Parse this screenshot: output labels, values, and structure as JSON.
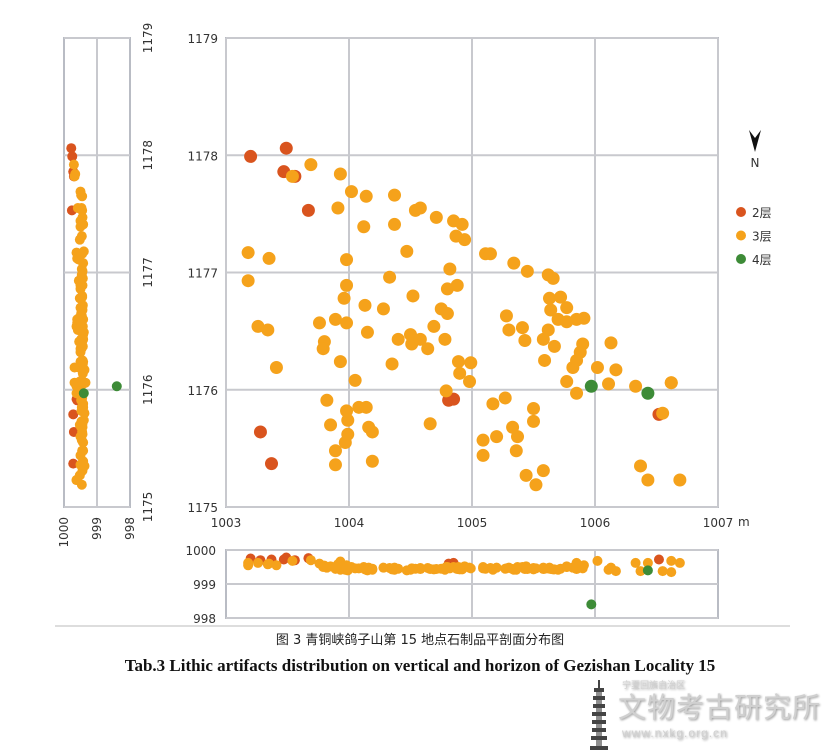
{
  "chart_data": {
    "type": "scatter",
    "title_cn": "图 3 青铜峡鸽子山第 15 地点石制品平剖面分布图",
    "title_en": "Tab.3  Lithic artifacts distribution on vertical and horizon of Gezishan Locality 15",
    "unit_label": "m",
    "north_label": "N",
    "plan": {
      "xlim": [
        1003,
        1007
      ],
      "ylim": [
        1175,
        1179
      ],
      "xticks": [
        "1003",
        "1004",
        "1005",
        "1006",
        "1007"
      ],
      "yticks": [
        "1175",
        "1176",
        "1177",
        "1178",
        "1179"
      ],
      "grid": true
    },
    "side_profile": {
      "zlim": [
        998,
        1000
      ],
      "zticks": [
        "1000",
        "999",
        "998"
      ],
      "ylim": [
        1175,
        1179
      ],
      "yticks": [
        "1175",
        "1176",
        "1177",
        "1178",
        "1179"
      ]
    },
    "front_profile": {
      "xlim": [
        1003,
        1007
      ],
      "zlim": [
        998,
        1000
      ],
      "zticks": [
        "1000",
        "999",
        "998"
      ]
    },
    "legend_position": "right",
    "series": [
      {
        "name": "2层",
        "color": "#d9541e",
        "points": [
          [
            1003.2,
            1177.99,
            999.75
          ],
          [
            1003.49,
            1178.06,
            999.78
          ],
          [
            1003.47,
            1177.86,
            999.72
          ],
          [
            1003.56,
            1177.82,
            999.7
          ],
          [
            1003.67,
            1177.53,
            999.76
          ],
          [
            1003.28,
            1175.64,
            999.7
          ],
          [
            1003.37,
            1175.37,
            999.72
          ],
          [
            1004.81,
            1175.91,
            999.6
          ],
          [
            1004.85,
            1175.92,
            999.62
          ],
          [
            1006.52,
            1175.79,
            999.72
          ]
        ]
      },
      {
        "name": "3层",
        "color": "#f5a21b",
        "points": [
          [
            1003.18,
            1177.17,
            999.62
          ],
          [
            1003.18,
            1176.93,
            999.55
          ],
          [
            1003.35,
            1177.12,
            999.6
          ],
          [
            1003.54,
            1177.82,
            999.68
          ],
          [
            1003.69,
            1177.92,
            999.7
          ],
          [
            1003.93,
            1177.84,
            999.66
          ],
          [
            1004.02,
            1177.69,
            999.5
          ],
          [
            1004.14,
            1177.65,
            999.45
          ],
          [
            1004.37,
            1177.66,
            999.48
          ],
          [
            1003.91,
            1177.55,
            999.58
          ],
          [
            1004.12,
            1177.39,
            999.5
          ],
          [
            1004.37,
            1177.41,
            999.42
          ],
          [
            1004.54,
            1177.53,
            999.45
          ],
          [
            1004.58,
            1177.55,
            999.47
          ],
          [
            1004.71,
            1177.47,
            999.44
          ],
          [
            1004.85,
            1177.44,
            999.5
          ],
          [
            1004.92,
            1177.41,
            999.43
          ],
          [
            1004.87,
            1177.31,
            999.46
          ],
          [
            1004.94,
            1177.28,
            999.52
          ],
          [
            1004.47,
            1177.18,
            999.4
          ],
          [
            1004.33,
            1176.96,
            999.47
          ],
          [
            1003.98,
            1177.11,
            999.55
          ],
          [
            1003.96,
            1176.78,
            999.52
          ],
          [
            1003.98,
            1176.89,
            999.5
          ],
          [
            1003.26,
            1176.54,
            999.62
          ],
          [
            1003.34,
            1176.51,
            999.58
          ],
          [
            1003.41,
            1176.19,
            999.55
          ],
          [
            1003.76,
            1176.57,
            999.6
          ],
          [
            1003.8,
            1176.41,
            999.54
          ],
          [
            1003.79,
            1176.35,
            999.5
          ],
          [
            1003.89,
            1176.6,
            999.45
          ],
          [
            1003.93,
            1176.24,
            999.42
          ],
          [
            1004.13,
            1176.72,
            999.43
          ],
          [
            1004.15,
            1176.49,
            999.4
          ],
          [
            1004.28,
            1176.69,
            999.48
          ],
          [
            1004.4,
            1176.43,
            999.45
          ],
          [
            1004.5,
            1176.47,
            999.42
          ],
          [
            1004.51,
            1176.39,
            999.46
          ],
          [
            1004.58,
            1176.43,
            999.44
          ],
          [
            1004.64,
            1176.35,
            999.47
          ],
          [
            1004.69,
            1176.54,
            999.43
          ],
          [
            1004.75,
            1176.69,
            999.45
          ],
          [
            1004.8,
            1176.65,
            999.48
          ],
          [
            1004.8,
            1176.86,
            999.5
          ],
          [
            1004.82,
            1177.03,
            999.46
          ],
          [
            1004.78,
            1176.43,
            999.42
          ],
          [
            1004.88,
            1176.89,
            999.44
          ],
          [
            1004.89,
            1176.24,
            999.5
          ],
          [
            1004.99,
            1176.23,
            999.46
          ],
          [
            1004.9,
            1176.14,
            999.43
          ],
          [
            1004.98,
            1176.07,
            999.48
          ],
          [
            1005.11,
            1177.16,
            999.45
          ],
          [
            1005.15,
            1177.16,
            999.47
          ],
          [
            1005.34,
            1177.08,
            999.42
          ],
          [
            1005.45,
            1177.01,
            999.44
          ],
          [
            1005.62,
            1176.98,
            999.46
          ],
          [
            1005.66,
            1176.95,
            999.43
          ],
          [
            1005.63,
            1176.78,
            999.48
          ],
          [
            1005.72,
            1176.79,
            999.45
          ],
          [
            1005.77,
            1176.7,
            999.5
          ],
          [
            1005.64,
            1176.68,
            999.44
          ],
          [
            1005.7,
            1176.6,
            999.42
          ],
          [
            1005.62,
            1176.51,
            999.46
          ],
          [
            1005.58,
            1176.43,
            999.48
          ],
          [
            1005.67,
            1176.37,
            999.43
          ],
          [
            1005.91,
            1176.61,
            999.55
          ],
          [
            1005.85,
            1176.6,
            999.6
          ],
          [
            1005.77,
            1176.58,
            999.5
          ],
          [
            1005.9,
            1176.39,
            999.46
          ],
          [
            1005.88,
            1176.32,
            999.5
          ],
          [
            1005.85,
            1176.25,
            999.44
          ],
          [
            1005.82,
            1176.19,
            999.48
          ],
          [
            1005.77,
            1176.07,
            999.52
          ],
          [
            1005.85,
            1175.97,
            999.62
          ],
          [
            1005.59,
            1176.25,
            999.45
          ],
          [
            1005.41,
            1176.53,
            999.5
          ],
          [
            1005.3,
            1176.51,
            999.48
          ],
          [
            1005.43,
            1176.42,
            999.44
          ],
          [
            1005.28,
            1176.63,
            999.46
          ],
          [
            1005.17,
            1175.88,
            999.42
          ],
          [
            1005.27,
            1175.93,
            999.45
          ],
          [
            1005.5,
            1175.84,
            999.43
          ],
          [
            1005.5,
            1175.73,
            999.47
          ],
          [
            1005.33,
            1175.68,
            999.44
          ],
          [
            1005.37,
            1175.6,
            999.5
          ],
          [
            1005.36,
            1175.48,
            999.42
          ],
          [
            1005.2,
            1175.6,
            999.48
          ],
          [
            1005.44,
            1175.27,
            999.52
          ],
          [
            1005.52,
            1175.19,
            999.46
          ],
          [
            1005.58,
            1175.31,
            999.44
          ],
          [
            1006.02,
            1176.19,
            999.68
          ],
          [
            1006.13,
            1176.4,
            999.48
          ],
          [
            1006.11,
            1176.05,
            999.42
          ],
          [
            1006.17,
            1176.17,
            999.38
          ],
          [
            1006.33,
            1176.03,
            999.62
          ],
          [
            1006.62,
            1176.06,
            999.68
          ],
          [
            1006.37,
            1175.35,
            999.38
          ],
          [
            1006.43,
            1175.23,
            999.62
          ],
          [
            1006.69,
            1175.23,
            999.62
          ],
          [
            1005.09,
            1175.57,
            999.46
          ],
          [
            1005.09,
            1175.44,
            999.5
          ],
          [
            1003.82,
            1175.91,
            999.48
          ],
          [
            1003.85,
            1175.7,
            999.52
          ],
          [
            1003.89,
            1175.48,
            999.45
          ],
          [
            1003.97,
            1175.55,
            999.42
          ],
          [
            1003.89,
            1175.36,
            999.5
          ],
          [
            1003.99,
            1175.74,
            999.4
          ],
          [
            1003.99,
            1175.62,
            999.44
          ],
          [
            1004.08,
            1175.85,
            999.46
          ],
          [
            1004.14,
            1175.85,
            999.42
          ],
          [
            1004.16,
            1175.68,
            999.48
          ],
          [
            1004.19,
            1175.64,
            999.45
          ],
          [
            1004.19,
            1175.39,
            999.42
          ],
          [
            1003.98,
            1175.82,
            999.47
          ],
          [
            1004.66,
            1175.71,
            999.44
          ],
          [
            1004.79,
            1175.99,
            999.5
          ],
          [
            1004.05,
            1176.08,
            999.46
          ],
          [
            1004.35,
            1176.22,
            999.43
          ],
          [
            1003.98,
            1176.57,
            999.48
          ],
          [
            1004.52,
            1176.8,
            999.45
          ],
          [
            1006.62,
            1176.06,
            999.35
          ],
          [
            1006.55,
            1175.8,
            999.38
          ]
        ]
      },
      {
        "name": "4层",
        "color": "#3d8b37",
        "points": [
          [
            1005.97,
            1176.03,
            998.4
          ],
          [
            1006.43,
            1175.97,
            999.4
          ]
        ]
      }
    ]
  },
  "watermark": {
    "org_small": "宁夏回族自治区",
    "org": "文物考古研究所",
    "url": "www.nxkg.org.cn"
  }
}
